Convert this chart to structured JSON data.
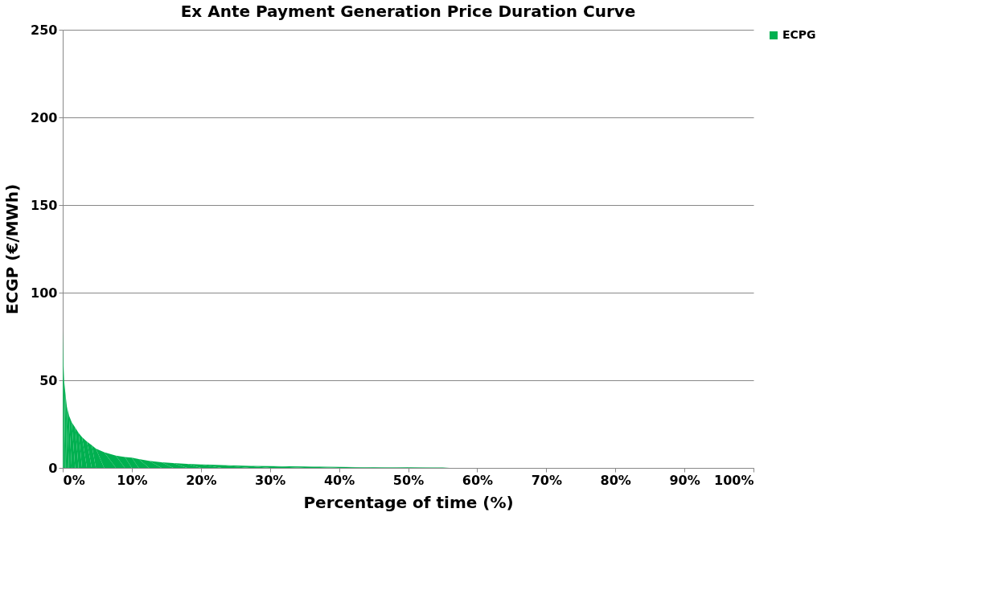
{
  "chart_data": {
    "type": "area",
    "title": "Ex Ante Payment Generation Price Duration Curve",
    "xlabel": "Percentage of time (%)",
    "ylabel": "ECGP (€/MWh)",
    "series": [
      {
        "name": "ECPG",
        "color": "#00b050",
        "x": [
          0,
          0.1,
          0.2,
          0.4,
          0.6,
          0.9,
          1.3,
          1.8,
          2.3,
          2.8,
          3.5,
          4.2,
          4.8,
          6,
          7.7,
          9,
          10,
          11,
          12.5,
          14.3,
          16,
          18,
          20,
          23,
          27,
          30,
          35,
          40,
          45,
          50,
          55,
          56,
          60,
          70,
          80,
          90,
          100
        ],
        "values": [
          78,
          60,
          50,
          42,
          35,
          30,
          26,
          23,
          20,
          17.5,
          15,
          13,
          11,
          9,
          7,
          6.2,
          5.8,
          5,
          4,
          3.2,
          2.7,
          2.3,
          2,
          1.6,
          1.2,
          1,
          0.8,
          0.6,
          0.4,
          0.3,
          0.2,
          0,
          0,
          0,
          0,
          0,
          0
        ]
      }
    ],
    "xlim": [
      0,
      100
    ],
    "xticks": [
      {
        "value": 0,
        "label": "0%"
      },
      {
        "value": 10,
        "label": "10%"
      },
      {
        "value": 20,
        "label": "20%"
      },
      {
        "value": 30,
        "label": "30%"
      },
      {
        "value": 40,
        "label": "40%"
      },
      {
        "value": 50,
        "label": "50%"
      },
      {
        "value": 60,
        "label": "60%"
      },
      {
        "value": 70,
        "label": "70%"
      },
      {
        "value": 80,
        "label": "80%"
      },
      {
        "value": 90,
        "label": "90%"
      },
      {
        "value": 100,
        "label": "100%"
      }
    ],
    "ylim": [
      0,
      250
    ],
    "yticks": [
      0,
      50,
      100,
      150,
      200,
      250
    ],
    "grid": "y",
    "legend": "right"
  }
}
